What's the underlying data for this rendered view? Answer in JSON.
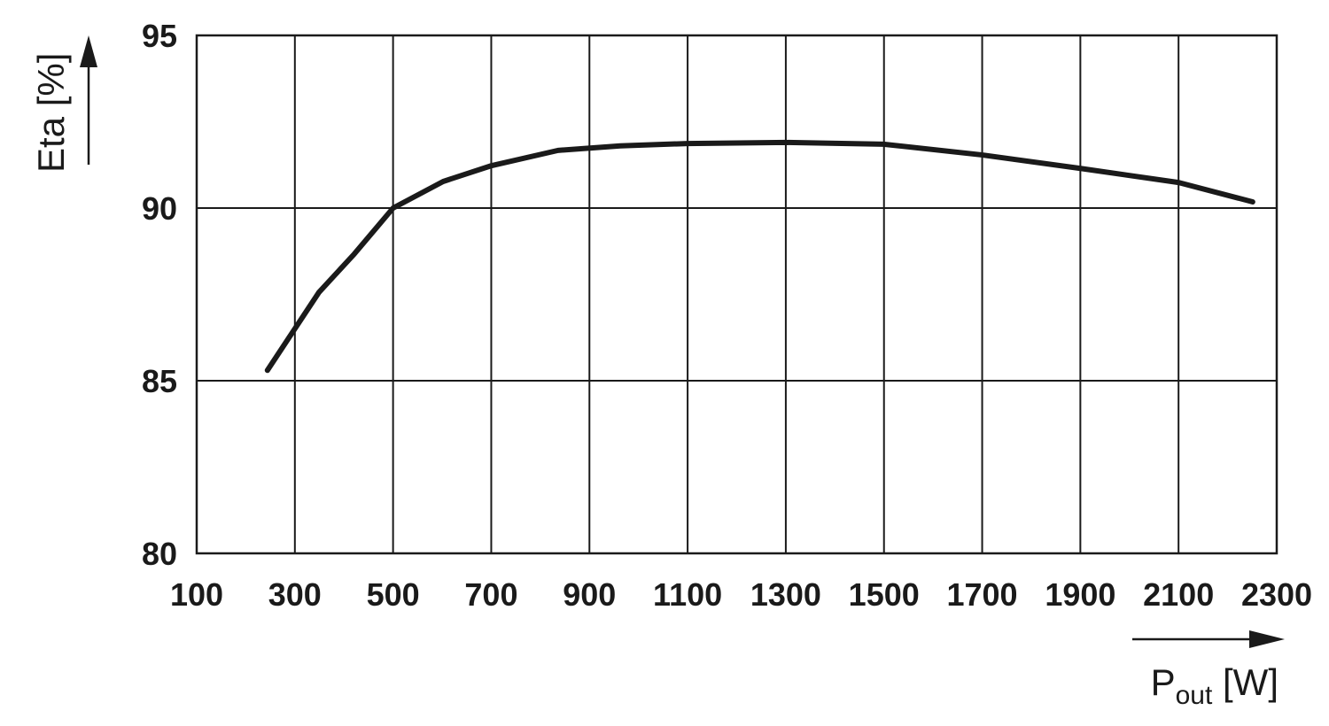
{
  "chart_data": {
    "type": "line",
    "y_label": "Eta [%]",
    "x_label": [
      "P",
      "out",
      " [W]"
    ],
    "x": [
      244,
      349,
      421,
      500,
      602,
      701,
      836,
      963,
      1100,
      1300,
      1499,
      1699,
      1899,
      2100,
      2251
    ],
    "series": [
      {
        "color": "#1a1a1a",
        "values": [
          85.3,
          87.56,
          88.67,
          90.0,
          90.77,
          91.23,
          91.67,
          91.8,
          91.87,
          91.9,
          91.85,
          91.54,
          91.15,
          90.74,
          90.18
        ]
      }
    ],
    "xlim": [
      100,
      2300
    ],
    "xticks": [
      100,
      300,
      500,
      700,
      900,
      1100,
      1300,
      1500,
      1700,
      1900,
      2100,
      2300
    ],
    "ylim": [
      80,
      95
    ],
    "yticks": [
      80,
      85,
      90,
      95
    ],
    "grid": true
  }
}
